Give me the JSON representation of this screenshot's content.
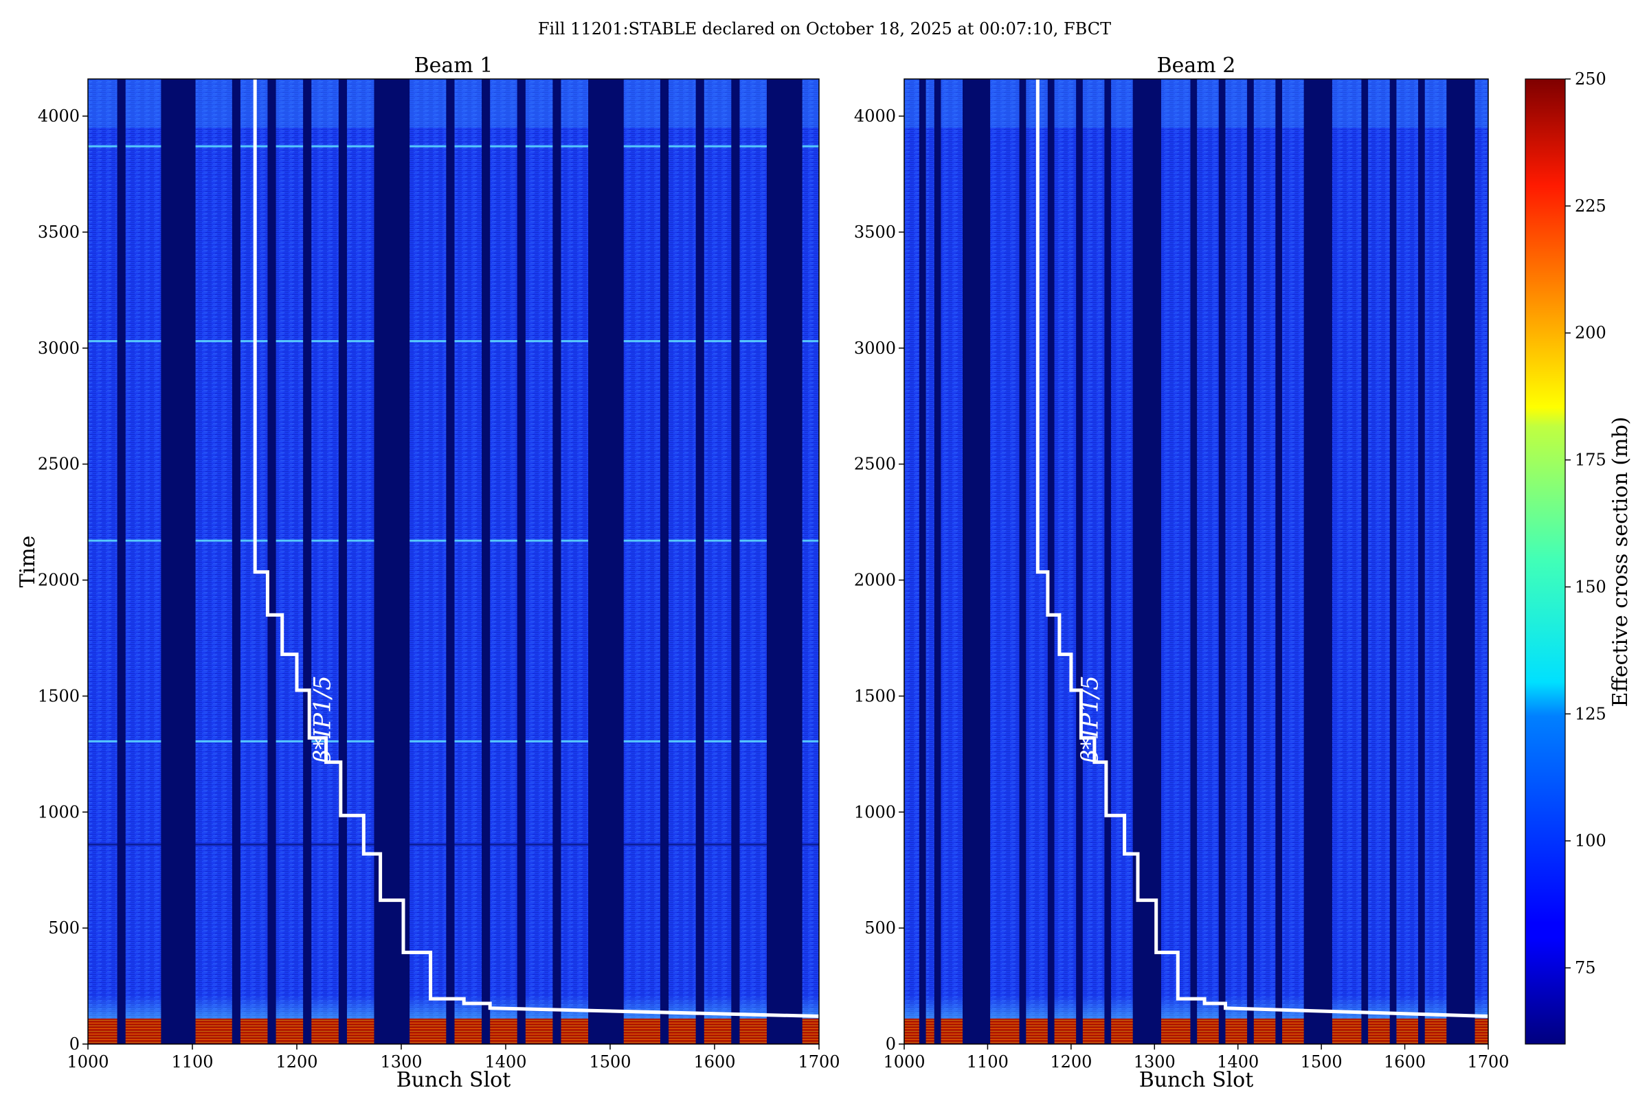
{
  "chart_data": {
    "type": "heatmap",
    "title": "Fill 11201:STABLE declared on October 18, 2025 at 00:07:10, FBCT",
    "colorbar": {
      "label": "Effective cross section (mb)",
      "range": [
        60,
        250
      ],
      "ticks": [
        75,
        100,
        125,
        150,
        175,
        200,
        225,
        250
      ],
      "colormap": "jet"
    },
    "panels": [
      {
        "name": "Beam 1",
        "xlabel": "Bunch Slot",
        "ylabel": "Time",
        "xlim": [
          1000,
          1700
        ],
        "ylim": [
          0,
          4160
        ],
        "xticks": [
          1000,
          1100,
          1200,
          1300,
          1400,
          1500,
          1600,
          1700
        ],
        "yticks": [
          0,
          500,
          1000,
          1500,
          2000,
          2500,
          3000,
          3500,
          4000
        ],
        "empty_slot_ranges": [
          [
            1028,
            1036
          ],
          [
            1070,
            1103
          ],
          [
            1138,
            1146
          ],
          [
            1172,
            1180
          ],
          [
            1206,
            1214
          ],
          [
            1240,
            1248
          ],
          [
            1274,
            1308
          ],
          [
            1343,
            1351
          ],
          [
            1377,
            1385
          ],
          [
            1411,
            1419
          ],
          [
            1445,
            1453
          ],
          [
            1479,
            1513
          ],
          [
            1548,
            1556
          ],
          [
            1582,
            1590
          ],
          [
            1616,
            1624
          ],
          [
            1650,
            1684
          ]
        ],
        "bright_time_bands": [
          860,
          1305,
          2170,
          3030,
          3870
        ],
        "beta_star_label": "β*IP1/5",
        "beta_star_steps": [
          [
            1160,
            4160
          ],
          [
            1160,
            2035
          ],
          [
            1172,
            2035
          ],
          [
            1172,
            1850
          ],
          [
            1186,
            1850
          ],
          [
            1186,
            1680
          ],
          [
            1200,
            1680
          ],
          [
            1200,
            1525
          ],
          [
            1212,
            1525
          ],
          [
            1212,
            1320
          ],
          [
            1228,
            1320
          ],
          [
            1228,
            1215
          ],
          [
            1242,
            1215
          ],
          [
            1242,
            985
          ],
          [
            1264,
            985
          ],
          [
            1264,
            820
          ],
          [
            1280,
            820
          ],
          [
            1280,
            620
          ],
          [
            1302,
            620
          ],
          [
            1302,
            395
          ],
          [
            1328,
            395
          ],
          [
            1328,
            195
          ],
          [
            1360,
            195
          ],
          [
            1360,
            175
          ],
          [
            1385,
            175
          ],
          [
            1385,
            155
          ],
          [
            1700,
            120
          ]
        ]
      },
      {
        "name": "Beam 2",
        "xlabel": "Bunch Slot",
        "ylabel": "",
        "xlim": [
          1000,
          1700
        ],
        "ylim": [
          0,
          4160
        ],
        "xticks": [
          1000,
          1100,
          1200,
          1300,
          1400,
          1500,
          1600,
          1700
        ],
        "yticks": [
          0,
          500,
          1000,
          1500,
          2000,
          2500,
          3000,
          3500,
          4000
        ],
        "empty_slot_ranges": [
          [
            1018,
            1026
          ],
          [
            1036,
            1044
          ],
          [
            1070,
            1103
          ],
          [
            1138,
            1146
          ],
          [
            1172,
            1180
          ],
          [
            1206,
            1214
          ],
          [
            1240,
            1248
          ],
          [
            1274,
            1308
          ],
          [
            1343,
            1351
          ],
          [
            1377,
            1385
          ],
          [
            1411,
            1419
          ],
          [
            1445,
            1453
          ],
          [
            1479,
            1513
          ],
          [
            1548,
            1556
          ],
          [
            1582,
            1590
          ],
          [
            1616,
            1624
          ],
          [
            1650,
            1684
          ]
        ],
        "bright_time_bands": [],
        "beta_star_label": "β*IP1/5",
        "beta_star_steps": [
          [
            1160,
            4160
          ],
          [
            1160,
            2035
          ],
          [
            1172,
            2035
          ],
          [
            1172,
            1850
          ],
          [
            1186,
            1850
          ],
          [
            1186,
            1680
          ],
          [
            1200,
            1680
          ],
          [
            1200,
            1525
          ],
          [
            1212,
            1525
          ],
          [
            1212,
            1320
          ],
          [
            1228,
            1320
          ],
          [
            1228,
            1215
          ],
          [
            1242,
            1215
          ],
          [
            1242,
            985
          ],
          [
            1264,
            985
          ],
          [
            1264,
            820
          ],
          [
            1280,
            820
          ],
          [
            1280,
            620
          ],
          [
            1302,
            620
          ],
          [
            1302,
            395
          ],
          [
            1328,
            395
          ],
          [
            1328,
            195
          ],
          [
            1360,
            195
          ],
          [
            1360,
            175
          ],
          [
            1385,
            175
          ],
          [
            1385,
            155
          ],
          [
            1700,
            120
          ]
        ]
      }
    ]
  }
}
